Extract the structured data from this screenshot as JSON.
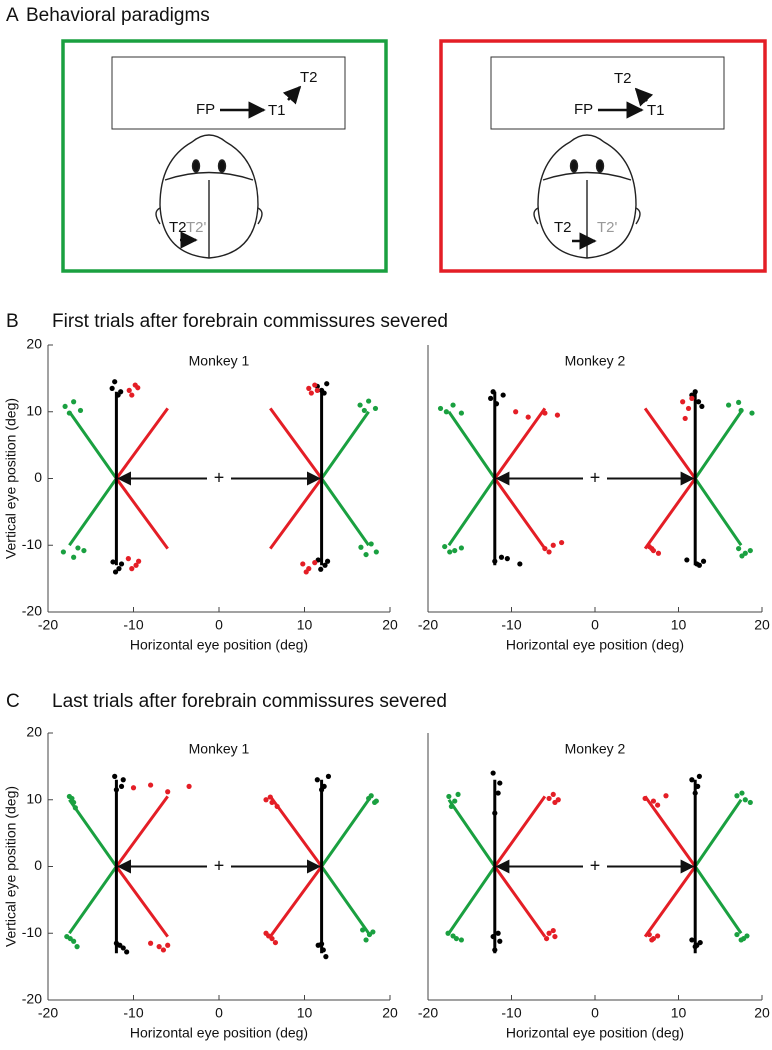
{
  "panel_a": {
    "label": "A",
    "title": "Behavioral paradigms",
    "left": {
      "fp": "FP",
      "t1": "T1",
      "t2": "T2",
      "head_t2": "T2",
      "head_t2_prime": "T2'"
    },
    "right": {
      "fp": "FP",
      "t1": "T1",
      "t2": "T2",
      "head_t2": "T2",
      "head_t2_prime": "T2'"
    }
  },
  "panel_b": {
    "label": "B",
    "title": "First trials after forebrain commissures severed"
  },
  "panel_c": {
    "label": "C",
    "title": "Last trials after forebrain commissures severed"
  },
  "chart_data": [
    {
      "type": "scatter",
      "title": "Monkey 1",
      "xlabel": "Horizontal eye position (deg)",
      "ylabel": "Vertical eye position (deg)",
      "xlim": [
        -20,
        20
      ],
      "ylim": [
        -20,
        20
      ],
      "xticks": [
        -20,
        -10,
        0,
        10,
        20
      ],
      "yticks": [
        -20,
        -10,
        0,
        10,
        20
      ],
      "series": [
        {
          "color": "#1aa040",
          "x": [
            -18,
            -17,
            -16.2,
            -17.5,
            16.5,
            17.5,
            18.3,
            17,
            -18.2,
            -16.5,
            -17,
            -15.8,
            16.6,
            17.8,
            18.4,
            17.2
          ],
          "y": [
            10.8,
            11.5,
            10.2,
            9.8,
            11,
            11.6,
            10.5,
            10.2,
            -11,
            -10.4,
            -11.8,
            -10.8,
            -10.3,
            -9.8,
            -11,
            -11.4
          ]
        },
        {
          "color": "#000000",
          "x": [
            -12.5,
            -11.8,
            -12.2,
            -11.5,
            11.5,
            12.3,
            12,
            12.6,
            -12.4,
            -11.7,
            -12.1,
            -11.4,
            11.6,
            12.4,
            11.9,
            12.7
          ],
          "y": [
            13.5,
            12.5,
            14.5,
            13,
            13.8,
            12.8,
            13.2,
            14.2,
            -12.5,
            -13.5,
            -14,
            -12.8,
            -12.2,
            -13,
            -13.6,
            -12.4
          ]
        },
        {
          "color": "#e41e26",
          "x": [
            -10.5,
            -9.8,
            -10.2,
            -9.5,
            10.5,
            11.2,
            10.8,
            11.5,
            -10.6,
            -9.7,
            -10.2,
            -9.4,
            9.8,
            10.5,
            11.2,
            10.2
          ],
          "y": [
            13.2,
            14,
            12.5,
            13.6,
            13.5,
            14,
            12.8,
            13.2,
            -12,
            -13,
            -13.5,
            -12.4,
            -12.8,
            -13.5,
            -12.6,
            -14
          ]
        }
      ],
      "lines": [
        {
          "color": "#1aa040",
          "x": [
            -17.5,
            -12,
            -17.5
          ],
          "y": [
            10,
            0,
            -10
          ]
        },
        {
          "color": "#e41e26",
          "x": [
            -6,
            -12,
            -6
          ],
          "y": [
            10.5,
            0,
            -10.5
          ]
        },
        {
          "color": "#000000",
          "x": [
            -12,
            -12
          ],
          "y": [
            13,
            -13
          ]
        },
        {
          "color": "#1aa040",
          "x": [
            17.5,
            12,
            17.5
          ],
          "y": [
            10,
            0,
            -10
          ]
        },
        {
          "color": "#e41e26",
          "x": [
            6,
            12,
            6
          ],
          "y": [
            10.5,
            0,
            -10.5
          ]
        },
        {
          "color": "#000000",
          "x": [
            12,
            12
          ],
          "y": [
            13,
            -13
          ]
        }
      ],
      "arrow": {
        "x": [
          -12,
          12
        ],
        "y": [
          0,
          0
        ]
      },
      "fixation": {
        "x": 0,
        "y": 0,
        "label": "+"
      }
    },
    {
      "type": "scatter",
      "title": "Monkey 2",
      "xlabel": "Horizontal eye position (deg)",
      "xlim": [
        -20,
        20
      ],
      "ylim": [
        -20,
        20
      ],
      "xticks": [
        -20,
        -10,
        0,
        10,
        20
      ],
      "series": [
        {
          "color": "#1aa040",
          "x": [
            -18.5,
            -17,
            -16,
            -17.8,
            16,
            17.5,
            18.8,
            17.2,
            -18,
            -16.8,
            -16,
            -17.4,
            17.2,
            18,
            18.6,
            17.6
          ],
          "y": [
            10.5,
            11,
            9.8,
            10,
            11,
            10.2,
            9.8,
            11.4,
            -10.2,
            -10.8,
            -10.4,
            -11,
            -10.5,
            -11.2,
            -10.8,
            -11.6
          ]
        },
        {
          "color": "#000000",
          "x": [
            -12.5,
            -11.8,
            -11,
            -12.2,
            11.6,
            12.4,
            12,
            12.8,
            -12,
            -10.5,
            -9,
            -11.2,
            11,
            12.2,
            13,
            12.5
          ],
          "y": [
            12,
            11.2,
            12.5,
            13,
            12.5,
            11.5,
            13,
            10.8,
            -12.4,
            -12,
            -12.8,
            -11.8,
            -12.2,
            -12.8,
            -12.4,
            -13
          ]
        },
        {
          "color": "#e41e26",
          "x": [
            -9.5,
            -8,
            -6,
            -4.5,
            10.5,
            11.2,
            10.8,
            11.6,
            -6,
            -5,
            -4,
            -5.5,
            6.5,
            7,
            7.6,
            6.8
          ],
          "y": [
            10,
            9.2,
            9.8,
            9.5,
            11.5,
            10.5,
            9,
            12,
            -10.5,
            -10,
            -9.6,
            -11,
            -10.2,
            -10.8,
            -11.2,
            -10.5
          ]
        }
      ],
      "lines": [
        {
          "color": "#1aa040",
          "x": [
            -17.5,
            -12,
            -17.5
          ],
          "y": [
            10,
            0,
            -10
          ]
        },
        {
          "color": "#e41e26",
          "x": [
            -6,
            -12,
            -6
          ],
          "y": [
            10.5,
            0,
            -10.5
          ]
        },
        {
          "color": "#000000",
          "x": [
            -12,
            -12
          ],
          "y": [
            13,
            -13
          ]
        },
        {
          "color": "#1aa040",
          "x": [
            17.5,
            12,
            17.5
          ],
          "y": [
            10,
            0,
            -10
          ]
        },
        {
          "color": "#e41e26",
          "x": [
            6,
            12,
            6
          ],
          "y": [
            10.5,
            0,
            -10.5
          ]
        },
        {
          "color": "#000000",
          "x": [
            12,
            12
          ],
          "y": [
            13,
            -13
          ]
        }
      ],
      "arrow": {
        "x": [
          -12,
          12
        ],
        "y": [
          0,
          0
        ]
      },
      "fixation": {
        "x": 0,
        "y": 0,
        "label": "+"
      }
    },
    {
      "type": "scatter",
      "title": "Monkey 1",
      "xlabel": "Horizontal eye position (deg)",
      "ylabel": "Vertical eye position (deg)",
      "xlim": [
        -20,
        20
      ],
      "ylim": [
        -20,
        20
      ],
      "xticks": [
        -20,
        -10,
        0,
        10,
        20
      ],
      "yticks": [
        -20,
        -10,
        0,
        10,
        20
      ],
      "series": [
        {
          "color": "#1aa040",
          "x": [
            -17.5,
            -17,
            -16.8,
            -17.2,
            17.5,
            18.2,
            17.8,
            18.4,
            -17.8,
            -17,
            -16.6,
            -17.4,
            16.8,
            17.6,
            17.2,
            18
          ],
          "y": [
            10.5,
            9.6,
            8.8,
            10.2,
            10.2,
            9.6,
            10.6,
            9.8,
            -10.5,
            -11.2,
            -12,
            -10.8,
            -9.5,
            -10.2,
            -11,
            -9.8
          ]
        },
        {
          "color": "#000000",
          "x": [
            -12.2,
            -11.4,
            -12,
            -11.2,
            11.5,
            12.3,
            12,
            12.8,
            -12,
            -11.2,
            -10.8,
            -11.6,
            11.6,
            12.2,
            12.5,
            12
          ],
          "y": [
            13.5,
            12,
            11.5,
            13,
            13,
            12,
            11.5,
            13.5,
            -11.5,
            -12.2,
            -12.8,
            -11.8,
            -11.8,
            -12.5,
            -13.5,
            -11.6
          ]
        },
        {
          "color": "#e41e26",
          "x": [
            -10,
            -8,
            -6,
            -3.5,
            5.5,
            6.2,
            6.8,
            6,
            -8,
            -7,
            -6,
            -6.5,
            5.5,
            6.2,
            6.6,
            5.8
          ],
          "y": [
            11.8,
            12.2,
            11.2,
            12,
            10,
            9.6,
            9,
            10.4,
            -11.5,
            -12,
            -11.8,
            -12.5,
            -10,
            -10.8,
            -11.4,
            -10.4
          ]
        }
      ],
      "lines": [
        {
          "color": "#1aa040",
          "x": [
            -17.5,
            -12,
            -17.5
          ],
          "y": [
            10,
            0,
            -10
          ]
        },
        {
          "color": "#e41e26",
          "x": [
            -6,
            -12,
            -6
          ],
          "y": [
            10.5,
            0,
            -10.5
          ]
        },
        {
          "color": "#000000",
          "x": [
            -12,
            -12
          ],
          "y": [
            13,
            -13
          ]
        },
        {
          "color": "#1aa040",
          "x": [
            17.5,
            12,
            17.5
          ],
          "y": [
            10,
            0,
            -10
          ]
        },
        {
          "color": "#e41e26",
          "x": [
            6,
            12,
            6
          ],
          "y": [
            10.5,
            0,
            -10.5
          ]
        },
        {
          "color": "#000000",
          "x": [
            12,
            12
          ],
          "y": [
            13,
            -13
          ]
        }
      ],
      "arrow": {
        "x": [
          -12,
          12
        ],
        "y": [
          0,
          0
        ]
      },
      "fixation": {
        "x": 0,
        "y": 0,
        "label": "+"
      }
    },
    {
      "type": "scatter",
      "title": "Monkey 2",
      "xlabel": "Horizontal eye position (deg)",
      "xlim": [
        -20,
        20
      ],
      "ylim": [
        -20,
        20
      ],
      "xticks": [
        -20,
        -10,
        0,
        10,
        20
      ],
      "series": [
        {
          "color": "#1aa040",
          "x": [
            -17.5,
            -16.8,
            -17.2,
            -16.4,
            17,
            18,
            18.6,
            17.6,
            -17.6,
            -16.6,
            -16,
            -17,
            17,
            17.8,
            18.2,
            17.5
          ],
          "y": [
            10.5,
            9.8,
            9,
            10.8,
            10.6,
            10,
            9.6,
            11,
            -10,
            -10.8,
            -11,
            -10.4,
            -10.2,
            -10.8,
            -10.4,
            -11
          ]
        },
        {
          "color": "#000000",
          "x": [
            -12.2,
            -11.6,
            -12,
            -11.4,
            11.6,
            12.3,
            12,
            12.5,
            -12.2,
            -11.4,
            -12,
            -11.6,
            11.6,
            12.2,
            12.6,
            12
          ],
          "y": [
            14,
            11,
            8,
            12.5,
            13,
            12,
            11,
            13.5,
            -10.5,
            -11.2,
            -12.5,
            -10,
            -11,
            -11.8,
            -11.4,
            -12
          ]
        },
        {
          "color": "#e41e26",
          "x": [
            -5.5,
            -4.8,
            -5,
            -4.4,
            6,
            7,
            8.5,
            7.5,
            -5.5,
            -4.8,
            -5,
            -5.8,
            6.5,
            7,
            7.5,
            6.8
          ],
          "y": [
            10.2,
            9.6,
            10.8,
            10,
            10.2,
            9.8,
            10.6,
            9.2,
            -10,
            -10.5,
            -9.6,
            -10.8,
            -10.2,
            -10.8,
            -10.4,
            -11
          ]
        }
      ],
      "lines": [
        {
          "color": "#1aa040",
          "x": [
            -17.5,
            -12,
            -17.5
          ],
          "y": [
            10,
            0,
            -10
          ]
        },
        {
          "color": "#e41e26",
          "x": [
            -6,
            -12,
            -6
          ],
          "y": [
            10.5,
            0,
            -10.5
          ]
        },
        {
          "color": "#000000",
          "x": [
            -12,
            -12
          ],
          "y": [
            13,
            -13
          ]
        },
        {
          "color": "#1aa040",
          "x": [
            17.5,
            12,
            17.5
          ],
          "y": [
            10,
            0,
            -10
          ]
        },
        {
          "color": "#e41e26",
          "x": [
            6,
            12,
            6
          ],
          "y": [
            10.5,
            0,
            -10.5
          ]
        },
        {
          "color": "#000000",
          "x": [
            12,
            12
          ],
          "y": [
            13,
            -13
          ]
        }
      ],
      "arrow": {
        "x": [
          -12,
          12
        ],
        "y": [
          0,
          0
        ]
      },
      "fixation": {
        "x": 0,
        "y": 0,
        "label": "+"
      }
    }
  ]
}
